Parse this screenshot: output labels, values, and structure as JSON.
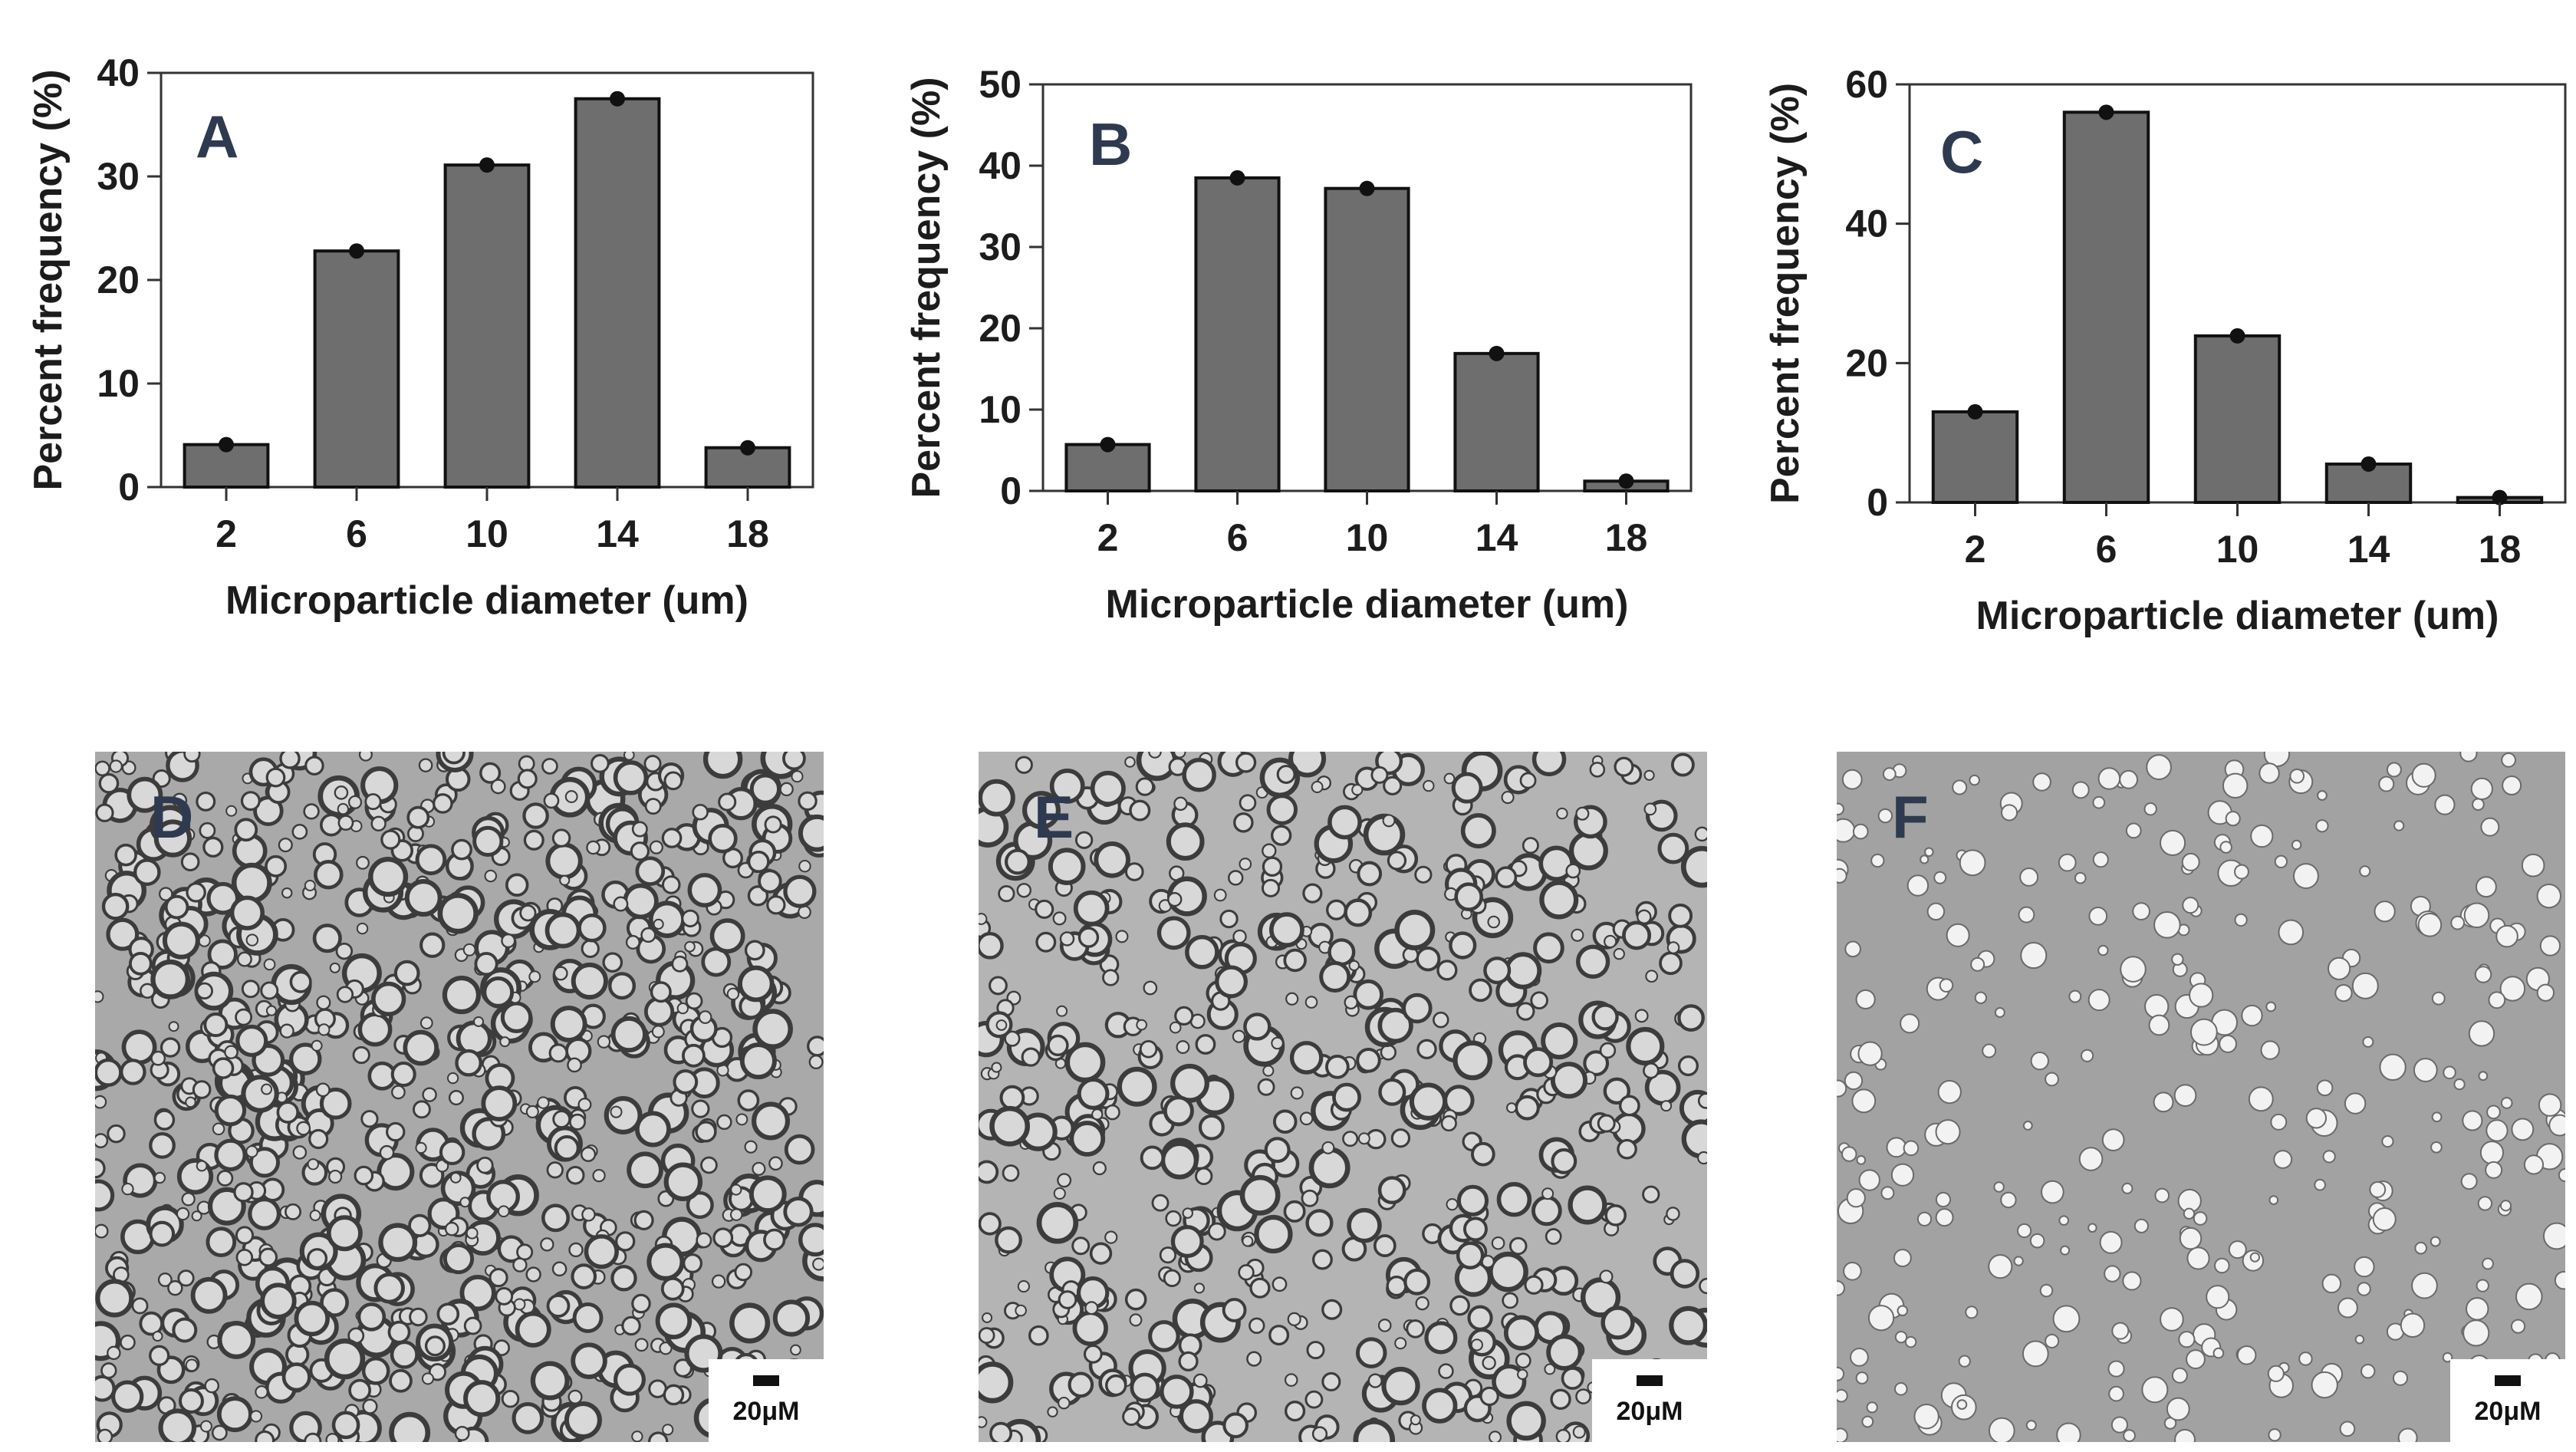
{
  "chart_data": [
    {
      "type": "bar",
      "panel": "A",
      "categories": [
        "2",
        "6",
        "10",
        "14",
        "18"
      ],
      "values": [
        4.1,
        22.8,
        31.1,
        37.5,
        3.8
      ],
      "xlabel": "Microparticle diameter (um)",
      "ylabel": "Percent frequency (%)",
      "ylim": [
        0,
        40
      ],
      "yticks": [
        0,
        10,
        20,
        30,
        40
      ],
      "bar_color": "#6e6e6e",
      "grid": false
    },
    {
      "type": "bar",
      "panel": "B",
      "categories": [
        "2",
        "6",
        "10",
        "14",
        "18"
      ],
      "values": [
        5.7,
        38.5,
        37.2,
        16.9,
        1.2
      ],
      "xlabel": "Microparticle diameter (um)",
      "ylabel": "Percent  frequency (%)",
      "ylim": [
        0,
        50
      ],
      "yticks": [
        0,
        10,
        20,
        30,
        40,
        50
      ],
      "bar_color": "#6e6e6e",
      "grid": false
    },
    {
      "type": "bar",
      "panel": "C",
      "categories": [
        "2",
        "6",
        "10",
        "14",
        "18"
      ],
      "values": [
        13.0,
        56.0,
        23.9,
        5.5,
        0.7
      ],
      "xlabel": "Microparticle diameter (um)",
      "ylabel": "Percent frequency (%)",
      "ylim": [
        0,
        60
      ],
      "yticks": [
        0,
        20,
        40,
        60
      ],
      "bar_color": "#6e6e6e",
      "grid": false
    }
  ],
  "micrographs": [
    {
      "label": "D",
      "scale_label": "20μM",
      "background": "#a9a9a9",
      "droplet_density": "high"
    },
    {
      "label": "E",
      "scale_label": "20μM",
      "background": "#b4b4b4",
      "droplet_density": "medium"
    },
    {
      "label": "F",
      "scale_label": "20μM",
      "background": "#a2a2a2",
      "droplet_density": "low"
    }
  ]
}
